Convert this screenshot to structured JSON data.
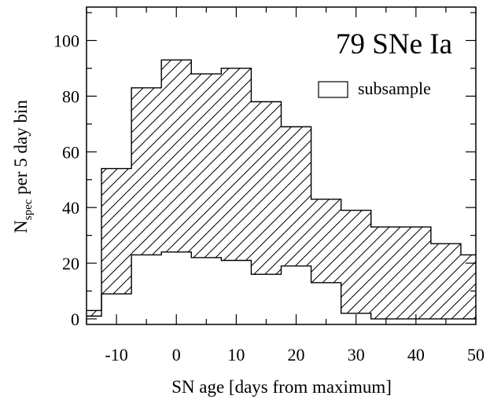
{
  "chart_data": {
    "type": "bar",
    "annotation": "79 SNe Ia",
    "xlabel": "SN age [days from maximum]",
    "ylabel": "N",
    "ylabel_sub": "spec",
    "ylabel_tail": " per 5 day bin",
    "xlim": [
      -15,
      50
    ],
    "ylim": [
      -2,
      112
    ],
    "x_ticks": [
      -10,
      0,
      10,
      20,
      30,
      40,
      50
    ],
    "y_ticks": [
      0,
      20,
      40,
      60,
      80,
      100
    ],
    "bin_edges": [
      -15,
      -12.5,
      -7.5,
      -2.5,
      2.5,
      7.5,
      12.5,
      17.5,
      22.5,
      27.5,
      32.5,
      37.5,
      42.5,
      47.5,
      50
    ],
    "series": [
      {
        "name": "",
        "style": "outline",
        "values": [
          3,
          54,
          83,
          93,
          88,
          90,
          78,
          69,
          43,
          39,
          33,
          33,
          27,
          23
        ]
      },
      {
        "name": "subsample",
        "style": "open",
        "values": [
          1,
          9,
          23,
          24,
          22,
          21,
          16,
          19,
          13,
          2,
          0,
          0,
          0,
          0
        ]
      }
    ],
    "hatched_region": "between",
    "legend": {
      "label": "subsample",
      "position": "top-right"
    },
    "grid": false
  }
}
